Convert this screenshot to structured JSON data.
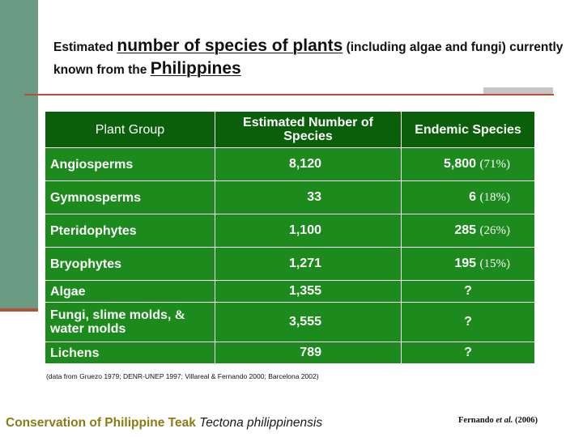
{
  "title": {
    "part1": "Estimated ",
    "highlight1": "number of species of plants",
    "part2": " (including algae and fungi) currently known from the ",
    "highlight2": "Philippines"
  },
  "colors": {
    "header_green": "#0b5f0b",
    "cell_green": "#1d8a1d",
    "side_bar": "#6b9a82",
    "rule_red": "#b1533a",
    "footer_gold": "#8a7b12"
  },
  "table": {
    "headers": [
      "Plant Group",
      "Estimated Number of Species",
      "Endemic Species"
    ],
    "rows": [
      {
        "group": "Angiosperms",
        "count": "8,120",
        "endemic": "5,800",
        "pct": "(71%)"
      },
      {
        "group": "Gymnosperms",
        "count": "33",
        "endemic": "6",
        "pct": "(18%)"
      },
      {
        "group": "Pteridophytes",
        "count": "1,100",
        "endemic": "285",
        "pct": "(26%)"
      },
      {
        "group": "Bryophytes",
        "count": "1,271",
        "endemic": "195",
        "pct": "(15%)"
      },
      {
        "group": "Algae",
        "count": "1,355",
        "endemic": "?",
        "pct": ""
      },
      {
        "group_line1": "Fungi, slime molds, ",
        "group_amp": "&",
        "group_line2": "water molds",
        "count": "3,555",
        "endemic": "?",
        "pct": ""
      },
      {
        "group": "Lichens",
        "count": "789",
        "endemic": "?",
        "pct": ""
      }
    ]
  },
  "source_note": "(data from Gruezo 1979; DENR-UNEP 1997; Villareal & Fernando 2000; Barcelona 2002)",
  "footer": {
    "conservation": "Conservation of Philippine Teak",
    "scientific": "Tectona philippinensis"
  },
  "credit": {
    "author": "Fernando ",
    "etal": "et al.",
    "year": " (2006)"
  }
}
